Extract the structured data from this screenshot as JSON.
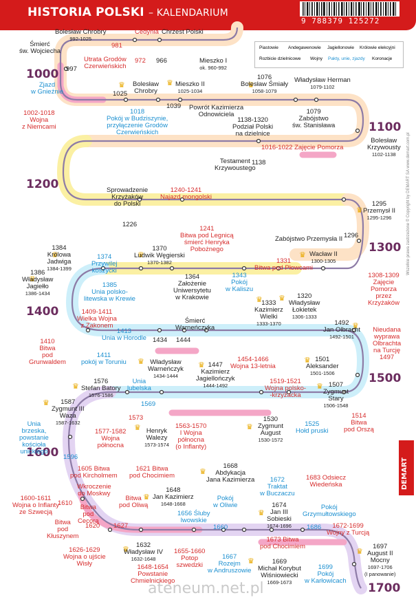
{
  "header": {
    "title": "HISTORIA POLSKI",
    "subtitle": "– KALENDARIUM",
    "isbn_digits": "9 788379 125272"
  },
  "legend": [
    {
      "label": "Piastowie",
      "bg": "#fde2c6"
    },
    {
      "label": "Andegawenowie",
      "bg": "#fbf0a3"
    },
    {
      "label": "Jagiellonowie",
      "bg": "#cdeffa"
    },
    {
      "label": "Królowie elekcyjni",
      "bg": "#e3d4f2"
    },
    {
      "label": "Rozbicie dzielnicowe",
      "bg": "#ffffff"
    },
    {
      "label": "Wojny",
      "bg": "#f4a6c6"
    },
    {
      "label": "Pakty, unie, zjazdy",
      "bg": "#ffffff"
    },
    {
      "label": "Koronacje",
      "bg": "#ffffff"
    }
  ],
  "centuries": [
    "1000",
    "1100",
    "1200",
    "1300",
    "1400",
    "1500",
    "1600",
    "1700"
  ],
  "events": [
    {
      "text": "Śmierć\nśw. Wojciecha",
      "c": "dark"
    },
    {
      "text": "Bolesław Chrobry",
      "date": "992-1025",
      "c": "dark"
    },
    {
      "text": "981",
      "c": "red"
    },
    {
      "text": "Utrata Grodów\nCzerwieńskich",
      "c": "red"
    },
    {
      "text": "Cedynia",
      "c": "red"
    },
    {
      "text": "972",
      "c": "red"
    },
    {
      "text": "966",
      "c": "dark"
    },
    {
      "text": "Chrzest Polski",
      "c": "dark"
    },
    {
      "text": "Mieszko I",
      "date": "ok. 960-992",
      "c": "dark"
    },
    {
      "text": "997",
      "c": "dark"
    },
    {
      "text": "Zjazd\nw Gnieźnie",
      "c": "blue"
    },
    {
      "text": "1002-1018\nWojna\nz Niemcami",
      "c": "red"
    },
    {
      "text": "1025",
      "c": "dark"
    },
    {
      "text": "Bolesław\nChrobry",
      "c": "dark"
    },
    {
      "text": "Mieszko II",
      "date": "1025-1034",
      "c": "dark"
    },
    {
      "text": "1039",
      "c": "dark"
    },
    {
      "text": "Powrót Kazimierza\nOdnowiciela",
      "c": "dark"
    },
    {
      "text": "1018\nPokój w Budziszynie,\nprzyłączenie Grodów\nCzerwieńskich",
      "c": "blue"
    },
    {
      "text": "1076\nBolesław Śmiały",
      "date": "1058-1079",
      "c": "dark"
    },
    {
      "text": "Władysław Herman",
      "date": "1079-1102",
      "c": "dark"
    },
    {
      "text": "1079\nZabójstwo\nśw. Stanisława",
      "c": "dark"
    },
    {
      "text": "Bolesław\nKrzywousty",
      "date": "1102-1138",
      "c": "dark"
    },
    {
      "text": "1138-1320\nPodział Polski\nna dzielnice",
      "c": "dark"
    },
    {
      "text": "1016-1022 Zajęcie Pomorza",
      "c": "red"
    },
    {
      "text": "Testament\nKrzywoustego",
      "c": "dark"
    },
    {
      "text": "1138",
      "c": "dark"
    },
    {
      "text": "Sprowadzenie\nKrzyżaków\ndo Polski",
      "c": "dark"
    },
    {
      "text": "1226",
      "c": "dark"
    },
    {
      "text": "1240-1241\nNajazd mongolski",
      "c": "red"
    },
    {
      "text": "1241\nBitwa pod Legnicą\nśmierć Henryka\nPobożnego",
      "c": "red"
    },
    {
      "text": "1295\nPrzemysł II",
      "date": "1295-1296",
      "c": "dark"
    },
    {
      "text": "Zabójstwo Przemysła II",
      "c": "dark"
    },
    {
      "text": "1296",
      "c": "dark"
    },
    {
      "text": "Wacław II",
      "date": "1300-1305",
      "c": "dark"
    },
    {
      "text": "1308-1309\nZajęcie\nPomorza\nprzez\nKrzyżaków",
      "c": "red"
    },
    {
      "text": "1384\nKrólowa\nJadwiga",
      "date": "1384-1399",
      "c": "dark"
    },
    {
      "text": "1374\nPrzywilej\nkoszycki",
      "c": "blue"
    },
    {
      "text": "1370\nLudwik Węgierski",
      "date": "1370-1382",
      "c": "dark"
    },
    {
      "text": "1331\nBitwa pod Płowcami",
      "c": "red"
    },
    {
      "text": "1386\nWładysław\nJagiełło",
      "date": "1386-1434",
      "c": "dark"
    },
    {
      "text": "1385\nUnia polsko-\nlitewska w Krewie",
      "c": "blue"
    },
    {
      "text": "1364\nZałożenie\nUniwersytetu\nw Krakowie",
      "c": "dark"
    },
    {
      "text": "1343\nPokój\nw Kaliszu",
      "c": "blue"
    },
    {
      "text": "1333\nKazimierz\nWielki",
      "date": "1333-1370",
      "c": "dark"
    },
    {
      "text": "1320\nWładysław\nŁokietek",
      "date": "1306-1333",
      "c": "dark"
    },
    {
      "text": "1409-1411\nWielka Wojna\nz Zakonem",
      "c": "red"
    },
    {
      "text": "1413\nUnia w Horodle",
      "c": "blue"
    },
    {
      "text": "Śmierć\nWarneńczyka",
      "c": "dark"
    },
    {
      "text": "1492\nJan Olbracht",
      "date": "1492-1501",
      "c": "dark"
    },
    {
      "text": "Nieudana\nwyprawa\nOlbrachta\nna Turcję\n1497",
      "c": "red"
    },
    {
      "text": "1410\nBitwa\npod\nGrunwaldem",
      "c": "red"
    },
    {
      "text": "1411\npokój w Toruniu",
      "c": "blue"
    },
    {
      "text": "1434",
      "c": "dark"
    },
    {
      "text": "1444",
      "c": "dark"
    },
    {
      "text": "Władysław\nWarneńczyk",
      "date": "1434-1444",
      "c": "dark"
    },
    {
      "text": "1447\nKazimierz\nJagiellończyk",
      "date": "1444-1492",
      "c": "dark"
    },
    {
      "text": "1454-1466\nWojna 13-letnia",
      "c": "red"
    },
    {
      "text": "1501\nAleksander",
      "date": "1501-1506",
      "c": "dark"
    },
    {
      "text": "1576\nStefan Batory",
      "date": "1576-1586",
      "c": "dark"
    },
    {
      "text": "Unia\nlubelska",
      "c": "blue"
    },
    {
      "text": "1569",
      "c": "blue"
    },
    {
      "text": "1519-1521\nWojna polsko-\n-krzyżacka",
      "c": "red"
    },
    {
      "text": "1507\nZygmunt\nStary",
      "date": "1506-1548",
      "c": "dark"
    },
    {
      "text": "1587\nZygmunt III\nWaza",
      "date": "1587-1632",
      "c": "dark"
    },
    {
      "text": "1573",
      "c": "red"
    },
    {
      "text": "1577-1582\nWojna\npółnocna",
      "c": "red"
    },
    {
      "text": "Henryk\nWalezy",
      "date": "1573-1574",
      "c": "dark"
    },
    {
      "text": "1563-1570\nI Wojna\npółnocna\n(o Inflanty)",
      "c": "red"
    },
    {
      "text": "1530\nZygmunt\nAugust",
      "date": "1530-1572",
      "c": "dark"
    },
    {
      "text": "1525\nHołd pruski",
      "c": "blue"
    },
    {
      "text": "1514\nBitwa\npod Orszą",
      "c": "red"
    },
    {
      "text": "Unia\nbrzeska,\npowstanie\nkościoła\nunickiego",
      "c": "blue"
    },
    {
      "text": "1596",
      "c": "blue"
    },
    {
      "text": "1605 Bitwa\npod Kircholmem",
      "c": "red"
    },
    {
      "text": "1621 Bitwa\npod Chocimiem",
      "c": "red"
    },
    {
      "text": "1668\nAbdykacja\nJana Kazimierza",
      "c": "dark"
    },
    {
      "text": "1672\nTraktat\nw Buczaczu",
      "c": "blue"
    },
    {
      "text": "1683 Odsiecz\nWiedeńska",
      "c": "red"
    },
    {
      "text": "1600-1611\nWojna o Inflanty\nze Szwecją",
      "c": "red"
    },
    {
      "text": "1610",
      "c": "red"
    },
    {
      "text": "Wkroczenie\ndo Moskwy",
      "c": "red"
    },
    {
      "text": "Bitwa\npod\nCecorą",
      "c": "red"
    },
    {
      "text": "1620",
      "c": "red"
    },
    {
      "text": "Bitwa\npod Oliwą",
      "c": "red"
    },
    {
      "text": "1627",
      "c": "red"
    },
    {
      "text": "1648\nJan Kazimierz",
      "date": "1648-1668",
      "c": "dark"
    },
    {
      "text": "Pokój\nw Oliwie",
      "c": "blue"
    },
    {
      "text": "1674\nJan III\nSobieski",
      "date": "1674-1696",
      "c": "dark"
    },
    {
      "text": "Pokój\nGrzymułtowskiego",
      "c": "blue"
    },
    {
      "text": "Bitwa\npod\nKłuszynem",
      "c": "red"
    },
    {
      "text": "1656 Śluby\nlwowskie",
      "c": "blue"
    },
    {
      "text": "1660",
      "c": "blue"
    },
    {
      "text": "1686",
      "c": "blue"
    },
    {
      "text": "1673 Bitwa\npod Chocimiem",
      "c": "red"
    },
    {
      "text": "1672-1699\nWojny z Turcją",
      "c": "red"
    },
    {
      "text": "1626-1629\nWojna o ujście\nWisły",
      "c": "red"
    },
    {
      "text": "1632\nWładysław IV",
      "date": "1632-1648",
      "c": "dark"
    },
    {
      "text": "1655-1660\nPotop\nszwedzki",
      "c": "red"
    },
    {
      "text": "1648-1654\nPowstanie\nChmielnickiego",
      "c": "red"
    },
    {
      "text": "1667\nRozejm\nw Andruszowie",
      "c": "blue"
    },
    {
      "text": "1669\nMichał Korybut\nWiśniowiecki",
      "date": "1669-1673",
      "c": "dark"
    },
    {
      "text": "1699\nPokój\nw Karłowicach",
      "c": "blue"
    },
    {
      "text": "1697\nAugust II\nMocny",
      "date": "1697-1706\n(I panowanie)",
      "c": "dark"
    }
  ],
  "footer": {
    "copyright": "Wszelkie prawa zastrzeżone © Copyright by DEMART SA www.demart.com.pl",
    "brand": "DEMART",
    "watermark": "ateneum.net.pl"
  }
}
